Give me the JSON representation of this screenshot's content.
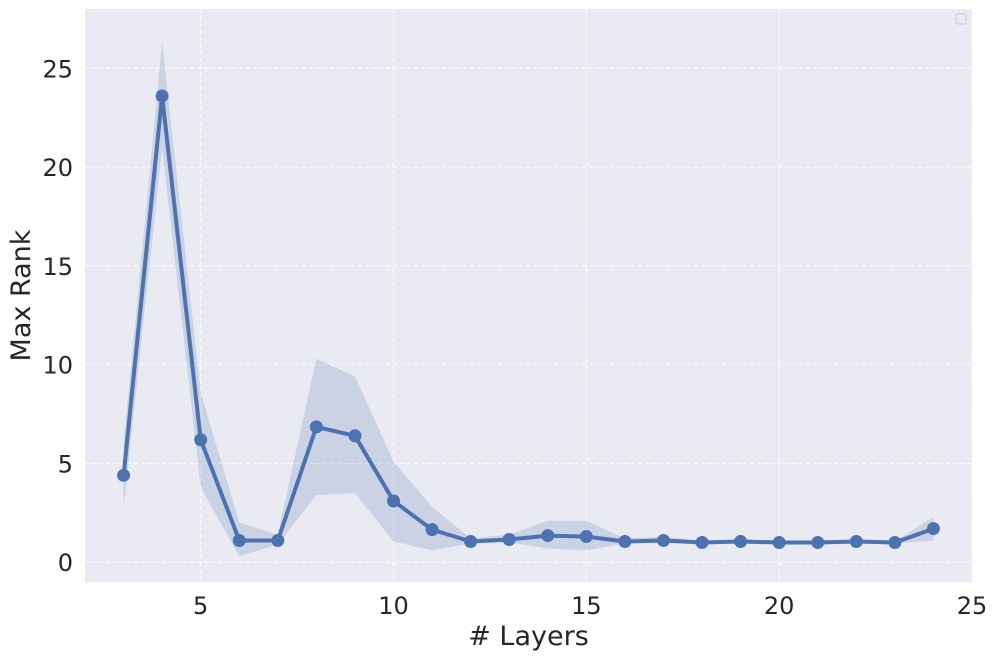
{
  "chart_data": {
    "type": "line",
    "xlabel": "# Layers",
    "ylabel": "Max Rank",
    "xlim": [
      2,
      25
    ],
    "ylim": [
      -1,
      28
    ],
    "xticks": [
      5,
      10,
      15,
      20,
      25
    ],
    "yticks": [
      0,
      5,
      10,
      15,
      20,
      25
    ],
    "xtick_labels": [
      "5",
      "10",
      "15",
      "20",
      "25"
    ],
    "ytick_labels": [
      "0",
      "5",
      "10",
      "15",
      "20",
      "25"
    ],
    "grid": true,
    "legend": "top-right (empty)",
    "colors": {
      "line": "#4c72b0",
      "band": "#4c72b0",
      "background": "#eaeaf2",
      "grid": "#ffffff"
    },
    "series": [
      {
        "x": [
          3,
          4,
          5,
          6,
          7,
          8,
          9,
          10,
          11,
          12,
          13,
          14,
          15,
          16,
          17,
          18,
          19,
          20,
          21,
          22,
          23,
          24
        ],
        "y": [
          4.4,
          23.6,
          6.2,
          1.1,
          1.1,
          6.85,
          6.4,
          3.1,
          1.65,
          1.05,
          1.15,
          1.35,
          1.3,
          1.05,
          1.1,
          1.0,
          1.05,
          1.0,
          1.0,
          1.05,
          1.0,
          1.7
        ],
        "lower": [
          2.7,
          21.0,
          3.8,
          0.3,
          0.9,
          3.4,
          3.5,
          1.05,
          0.6,
          0.95,
          1.0,
          0.7,
          0.6,
          0.95,
          1.0,
          0.95,
          0.95,
          0.95,
          0.95,
          0.95,
          0.95,
          1.1
        ],
        "upper": [
          6.0,
          26.3,
          8.6,
          2.0,
          1.4,
          10.3,
          9.4,
          5.1,
          2.8,
          1.2,
          1.4,
          2.1,
          2.1,
          1.2,
          1.3,
          1.05,
          1.1,
          1.05,
          1.05,
          1.1,
          1.05,
          2.3
        ]
      }
    ]
  }
}
